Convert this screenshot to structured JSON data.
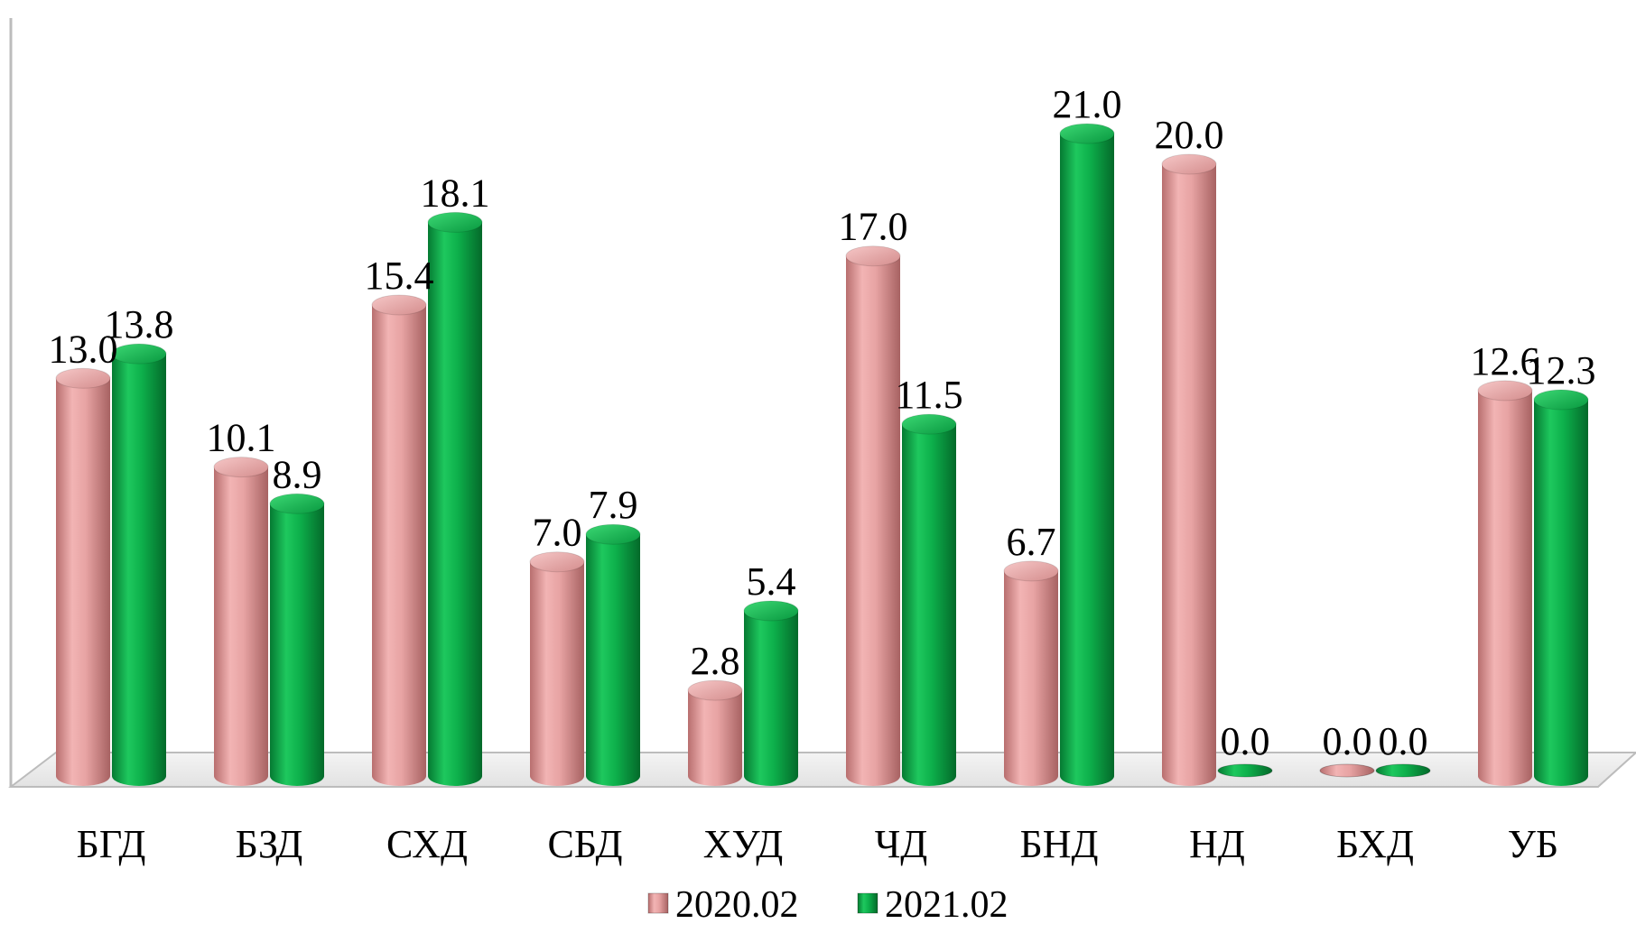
{
  "chart_data": {
    "type": "bar",
    "style": "3d-cylinder",
    "categories": [
      "БГД",
      "БЗД",
      "СХД",
      "СБД",
      "ХУД",
      "ЧД",
      "БНД",
      "НД",
      "БХД",
      "УБ"
    ],
    "series": [
      {
        "name": "2020.02",
        "color": "#e39a9a",
        "values": [
          13.0,
          10.1,
          15.4,
          7.0,
          2.8,
          17.0,
          6.7,
          20.0,
          0.0,
          12.6
        ],
        "labels": [
          "13.0",
          "10.1",
          "15.4",
          "7.0",
          "2.8",
          "17.0",
          "6.7",
          "20.0",
          "0.0",
          "12.6"
        ]
      },
      {
        "name": "2021.02",
        "color": "#0db04b",
        "values": [
          13.8,
          8.9,
          18.1,
          7.9,
          5.4,
          11.5,
          21.0,
          0.0,
          0.0,
          12.3
        ],
        "labels": [
          "13.8",
          "8.9",
          "18.1",
          "7.9",
          "5.4",
          "11.5",
          "21.0",
          "0.0",
          "0.0",
          "12.3"
        ]
      }
    ],
    "ylim": [
      0,
      22
    ],
    "title": "",
    "xlabel": "",
    "ylabel": "",
    "grid": false,
    "legend_position": "bottom-center"
  }
}
